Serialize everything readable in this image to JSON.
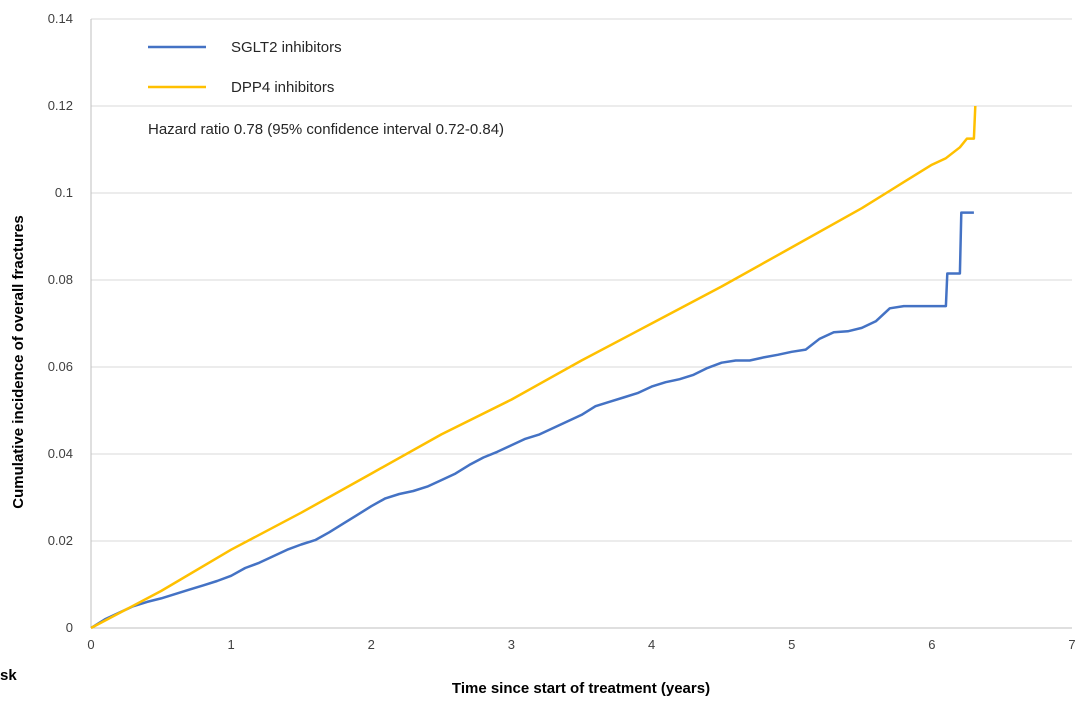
{
  "chart_data": {
    "type": "line",
    "title": "",
    "xlabel": "Time since start of treatment (years)",
    "ylabel": "Cumulative incidence of overall fractures",
    "xlim": [
      0,
      7
    ],
    "ylim": [
      0,
      0.14
    ],
    "xticks": [
      "0",
      "1",
      "2",
      "3",
      "4",
      "5",
      "6",
      "7"
    ],
    "yticks": [
      "0",
      "0.02",
      "0.04",
      "0.06",
      "0.08",
      "0.1",
      "0.12",
      "0.14"
    ],
    "grid": "horizontal",
    "legend_position": "top-left",
    "annotation": "Hazard ratio 0.78 (95% confidence interval 0.72-0.84)",
    "cut_off_text": "sk",
    "series": [
      {
        "name": "SGLT2 inhibitors",
        "color": "#4472C4",
        "points": [
          [
            0,
            0
          ],
          [
            0.1,
            0.002
          ],
          [
            0.2,
            0.0035
          ],
          [
            0.3,
            0.005
          ],
          [
            0.4,
            0.006
          ],
          [
            0.5,
            0.0068
          ],
          [
            0.6,
            0.0078
          ],
          [
            0.7,
            0.0088
          ],
          [
            0.8,
            0.0098
          ],
          [
            0.9,
            0.0108
          ],
          [
            1.0,
            0.012
          ],
          [
            1.1,
            0.0138
          ],
          [
            1.2,
            0.015
          ],
          [
            1.3,
            0.0165
          ],
          [
            1.4,
            0.018
          ],
          [
            1.5,
            0.0192
          ],
          [
            1.6,
            0.0202
          ],
          [
            1.7,
            0.022
          ],
          [
            1.8,
            0.024
          ],
          [
            1.9,
            0.026
          ],
          [
            2.0,
            0.028
          ],
          [
            2.1,
            0.0298
          ],
          [
            2.2,
            0.0308
          ],
          [
            2.3,
            0.0315
          ],
          [
            2.4,
            0.0325
          ],
          [
            2.5,
            0.034
          ],
          [
            2.6,
            0.0355
          ],
          [
            2.7,
            0.0375
          ],
          [
            2.8,
            0.0392
          ],
          [
            2.9,
            0.0405
          ],
          [
            3.0,
            0.042
          ],
          [
            3.1,
            0.0435
          ],
          [
            3.2,
            0.0445
          ],
          [
            3.3,
            0.046
          ],
          [
            3.4,
            0.0475
          ],
          [
            3.5,
            0.049
          ],
          [
            3.6,
            0.051
          ],
          [
            3.7,
            0.052
          ],
          [
            3.8,
            0.053
          ],
          [
            3.9,
            0.054
          ],
          [
            4.0,
            0.0555
          ],
          [
            4.1,
            0.0565
          ],
          [
            4.2,
            0.0572
          ],
          [
            4.3,
            0.0582
          ],
          [
            4.4,
            0.0598
          ],
          [
            4.5,
            0.061
          ],
          [
            4.6,
            0.0615
          ],
          [
            4.7,
            0.0615
          ],
          [
            4.8,
            0.0622
          ],
          [
            4.9,
            0.0628
          ],
          [
            5.0,
            0.0635
          ],
          [
            5.1,
            0.064
          ],
          [
            5.2,
            0.0665
          ],
          [
            5.3,
            0.068
          ],
          [
            5.4,
            0.0682
          ],
          [
            5.5,
            0.069
          ],
          [
            5.6,
            0.0705
          ],
          [
            5.7,
            0.0735
          ],
          [
            5.8,
            0.074
          ],
          [
            5.9,
            0.074
          ],
          [
            6.0,
            0.074
          ],
          [
            6.1,
            0.074
          ],
          [
            6.11,
            0.0815
          ],
          [
            6.2,
            0.0815
          ],
          [
            6.21,
            0.0955
          ],
          [
            6.3,
            0.0955
          ]
        ]
      },
      {
        "name": "DPP4 inhibitors",
        "color": "#FFC000",
        "points": [
          [
            0,
            0
          ],
          [
            0.5,
            0.0085
          ],
          [
            1.0,
            0.018
          ],
          [
            1.5,
            0.0265
          ],
          [
            2.0,
            0.0355
          ],
          [
            2.5,
            0.0445
          ],
          [
            3.0,
            0.0525
          ],
          [
            3.5,
            0.0615
          ],
          [
            4.0,
            0.07
          ],
          [
            4.5,
            0.0785
          ],
          [
            5.0,
            0.0875
          ],
          [
            5.5,
            0.0965
          ],
          [
            5.8,
            0.1025
          ],
          [
            6.0,
            0.1065
          ],
          [
            6.1,
            0.108
          ],
          [
            6.2,
            0.1105
          ],
          [
            6.25,
            0.1125
          ],
          [
            6.3,
            0.1125
          ],
          [
            6.31,
            0.12
          ]
        ]
      }
    ]
  }
}
